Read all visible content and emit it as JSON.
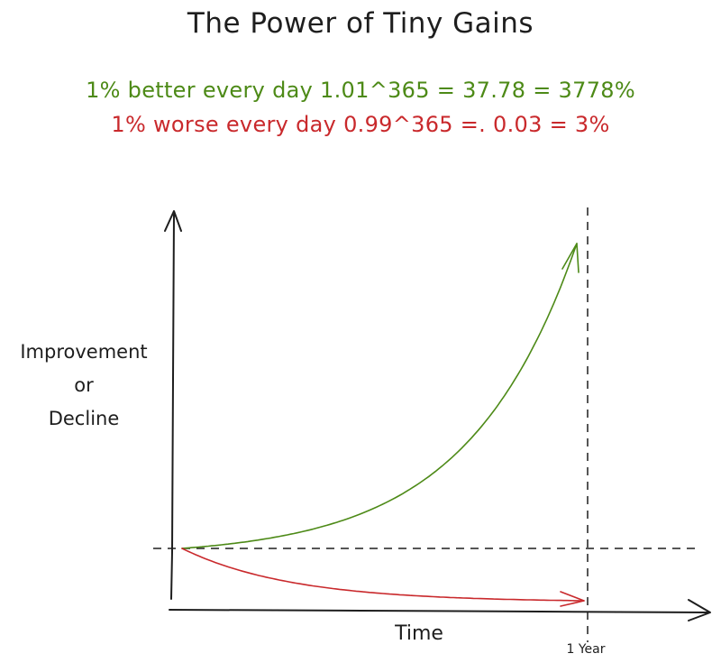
{
  "chart_data": {
    "type": "line",
    "title": "The Power of Tiny Gains",
    "subtitles": [
      "1% better every day 1.01^365 = 37.78 = 3778%",
      "1% worse every day 0.99^365 =. 0.03 = 3%"
    ],
    "xlabel": "Time",
    "ylabel": [
      "Improvement",
      "or",
      "Decline"
    ],
    "x_marker": {
      "label": "1 Year",
      "x": 365
    },
    "baseline": 1,
    "xlim": [
      0,
      365
    ],
    "grid": false,
    "series": [
      {
        "base": 1.01,
        "color": "#4d8a17"
      },
      {
        "base": 0.99,
        "color": "#c9292c"
      }
    ]
  }
}
